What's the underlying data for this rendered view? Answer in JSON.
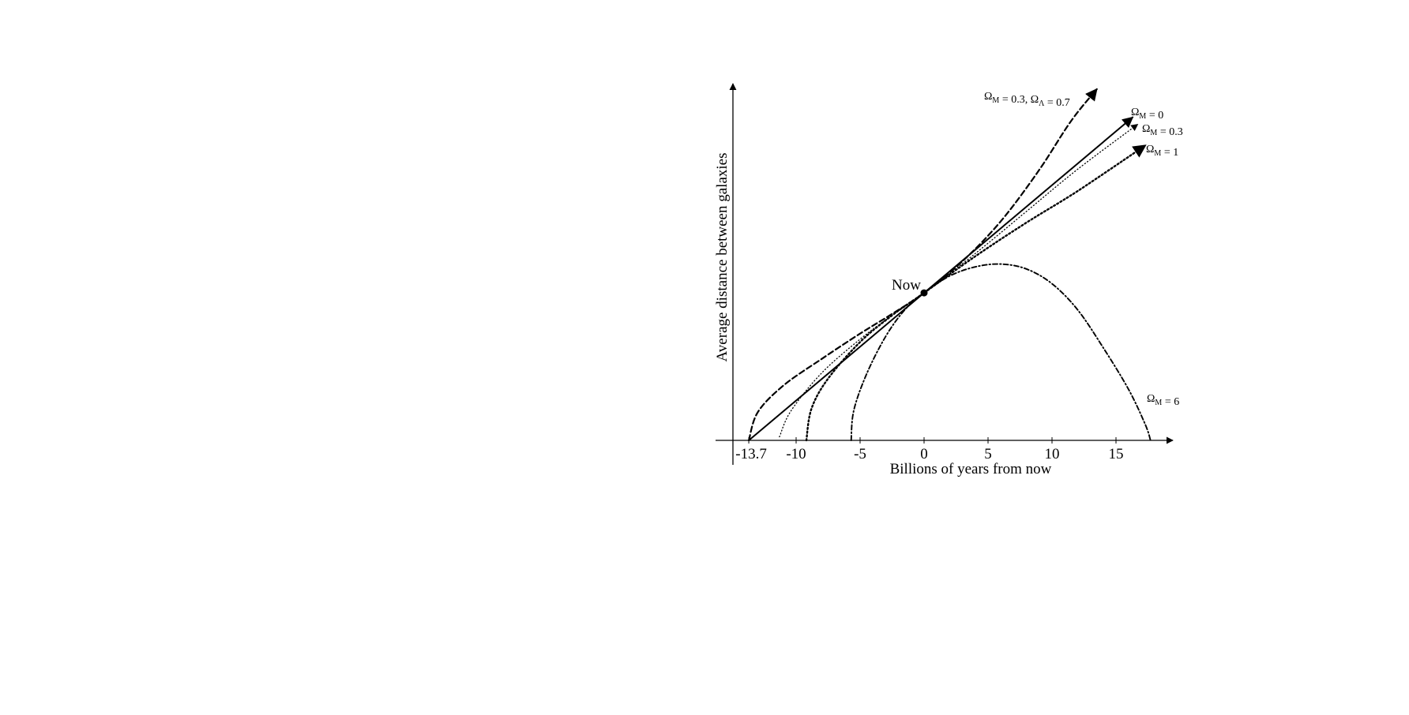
{
  "chart_data": {
    "type": "line",
    "xlabel": "Billions of years from now",
    "ylabel": "Average distance between galaxies",
    "xlim": [
      -13.7,
      18.5
    ],
    "ylim": [
      0,
      5.4
    ],
    "xticks": [
      {
        "value": -13.7,
        "label": "-13.7"
      },
      {
        "value": -10,
        "label": "-10"
      },
      {
        "value": -5,
        "label": "-5"
      },
      {
        "value": 0,
        "label": "0"
      },
      {
        "value": 5,
        "label": "5"
      },
      {
        "value": 10,
        "label": "10"
      },
      {
        "value": 15,
        "label": "15"
      }
    ],
    "now_point": {
      "x": 0,
      "y": 2.1,
      "label": "Now"
    },
    "grid": false,
    "legend": "none (curves labeled directly)",
    "series": [
      {
        "label_parts": [
          {
            "text": "Ω",
            "sub": "M"
          },
          {
            "text": " = 0.3, Ω",
            "sub": "Λ"
          },
          {
            "text": " = 0.7",
            "sub": ""
          }
        ],
        "style": "dashed",
        "arrow": true,
        "points": [
          [
            -13.7,
            0
          ],
          [
            -13,
            0.4
          ],
          [
            -11,
            0.78
          ],
          [
            -8,
            1.16
          ],
          [
            -5,
            1.52
          ],
          [
            -2.5,
            1.8
          ],
          [
            0,
            2.1
          ],
          [
            3,
            2.55
          ],
          [
            6,
            3.12
          ],
          [
            9,
            3.85
          ],
          [
            11.5,
            4.55
          ],
          [
            13.5,
            5.0
          ]
        ]
      },
      {
        "label_parts": [
          {
            "text": "Ω",
            "sub": "M"
          },
          {
            "text": " = 0",
            "sub": ""
          }
        ],
        "style": "solid",
        "arrow": true,
        "points": [
          [
            -13.7,
            0
          ],
          [
            0,
            2.1
          ],
          [
            16.3,
            4.6
          ]
        ]
      },
      {
        "label_parts": [
          {
            "text": "Ω",
            "sub": "M"
          },
          {
            "text": " = 0.3",
            "sub": ""
          }
        ],
        "style": "dotted-fine",
        "arrow": true,
        "points": [
          [
            -11.3,
            0.05
          ],
          [
            -10.4,
            0.42
          ],
          [
            -8,
            0.96
          ],
          [
            -5,
            1.44
          ],
          [
            -2.5,
            1.78
          ],
          [
            0,
            2.1
          ],
          [
            4,
            2.66
          ],
          [
            8,
            3.26
          ],
          [
            12,
            3.86
          ],
          [
            16.7,
            4.5
          ]
        ]
      },
      {
        "label_parts": [
          {
            "text": "Ω",
            "sub": "M"
          },
          {
            "text": " = 1",
            "sub": ""
          }
        ],
        "style": "dotted",
        "arrow": true,
        "points": [
          [
            -9.2,
            0
          ],
          [
            -8.8,
            0.45
          ],
          [
            -7.5,
            0.88
          ],
          [
            -5,
            1.4
          ],
          [
            -2.5,
            1.78
          ],
          [
            0,
            2.1
          ],
          [
            4,
            2.62
          ],
          [
            8,
            3.1
          ],
          [
            12,
            3.55
          ],
          [
            17.3,
            4.2
          ]
        ]
      },
      {
        "label_parts": [
          {
            "text": "Ω",
            "sub": "M"
          },
          {
            "text": " = 6",
            "sub": ""
          }
        ],
        "style": "dash-dot",
        "arrow": false,
        "points": [
          [
            -5.7,
            0
          ],
          [
            -5.5,
            0.42
          ],
          [
            -4.5,
            0.94
          ],
          [
            -3,
            1.48
          ],
          [
            -1.5,
            1.86
          ],
          [
            0,
            2.1
          ],
          [
            2,
            2.34
          ],
          [
            4,
            2.47
          ],
          [
            6,
            2.51
          ],
          [
            8,
            2.44
          ],
          [
            10,
            2.23
          ],
          [
            12,
            1.86
          ],
          [
            14,
            1.32
          ],
          [
            16,
            0.72
          ],
          [
            17.3,
            0.22
          ],
          [
            17.7,
            0
          ]
        ]
      }
    ]
  }
}
